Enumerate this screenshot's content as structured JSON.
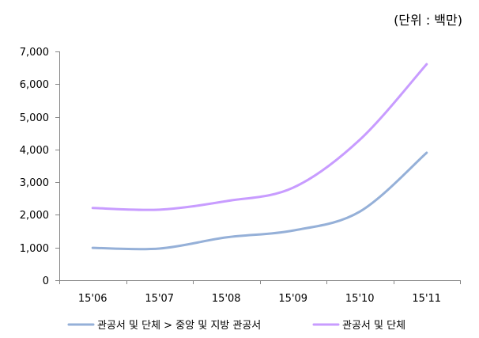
{
  "chart_data": {
    "type": "line",
    "unit_label": "(단위 : 백만)",
    "categories": [
      "15'06",
      "15'07",
      "15'08",
      "15'09",
      "15'10",
      "15'11"
    ],
    "series": [
      {
        "name": "관공서 및 단체 > 중앙 및 지방 관공서",
        "color": "#95B0D8",
        "values": [
          990,
          970,
          1310,
          1520,
          2100,
          3900
        ]
      },
      {
        "name": "관공서 및 단체",
        "color": "#C89CFF",
        "values": [
          2210,
          2160,
          2420,
          2830,
          4300,
          6610
        ]
      }
    ],
    "ylim": [
      0,
      7000
    ],
    "yticks": [
      0,
      1000,
      2000,
      3000,
      4000,
      5000,
      6000,
      7000
    ],
    "ytick_labels": [
      "0",
      "1,000",
      "2,000",
      "3,000",
      "4,000",
      "5,000",
      "6,000",
      "7,000"
    ],
    "smooth": true,
    "grid": false,
    "legend_position": "bottom"
  }
}
